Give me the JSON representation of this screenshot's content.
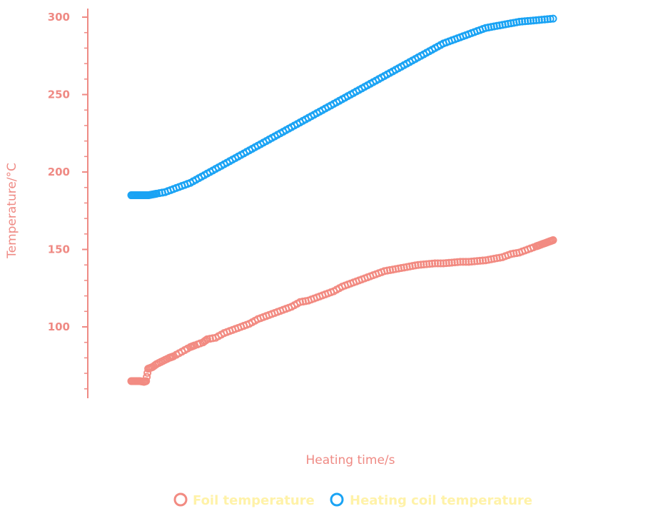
{
  "colors": {
    "axis": "#ef8a84",
    "foil": "#f28b82",
    "coil": "#1aa3f4",
    "legend_text": "#fff2a8"
  },
  "chart_data": {
    "type": "scatter",
    "title": "",
    "xlabel": "Heating time/s",
    "ylabel": "Temperature/°C",
    "ylim": [
      50,
      300
    ],
    "yticks": [
      100,
      150,
      200,
      250,
      300
    ],
    "ytick_labels": [
      "100",
      "150",
      "200",
      "250",
      "300"
    ],
    "x_tick_labels_shown": false,
    "grid": false,
    "legend_position": "bottom",
    "marker": "open-circle",
    "series": [
      {
        "name": "Foil temperature",
        "color": "#f28b82",
        "points": [
          [
            0.0,
            65
          ],
          [
            0.01,
            65
          ],
          [
            0.02,
            65
          ],
          [
            0.03,
            64.5
          ],
          [
            0.035,
            65
          ],
          [
            0.04,
            73
          ],
          [
            0.05,
            74
          ],
          [
            0.06,
            76
          ],
          [
            0.075,
            78
          ],
          [
            0.09,
            80
          ],
          [
            0.1,
            81
          ],
          [
            0.12,
            84
          ],
          [
            0.14,
            87
          ],
          [
            0.15,
            88
          ],
          [
            0.17,
            90
          ],
          [
            0.18,
            92
          ],
          [
            0.2,
            93
          ],
          [
            0.22,
            96
          ],
          [
            0.24,
            98
          ],
          [
            0.26,
            100
          ],
          [
            0.28,
            102
          ],
          [
            0.3,
            105
          ],
          [
            0.32,
            107
          ],
          [
            0.34,
            109
          ],
          [
            0.36,
            111
          ],
          [
            0.38,
            113
          ],
          [
            0.4,
            116
          ],
          [
            0.42,
            117
          ],
          [
            0.44,
            119
          ],
          [
            0.46,
            121
          ],
          [
            0.48,
            123
          ],
          [
            0.5,
            126
          ],
          [
            0.52,
            128
          ],
          [
            0.54,
            130
          ],
          [
            0.56,
            132
          ],
          [
            0.58,
            134
          ],
          [
            0.6,
            136
          ],
          [
            0.62,
            137
          ],
          [
            0.64,
            138
          ],
          [
            0.66,
            139
          ],
          [
            0.68,
            140
          ],
          [
            0.7,
            140.5
          ],
          [
            0.72,
            141
          ],
          [
            0.74,
            141
          ],
          [
            0.76,
            141.5
          ],
          [
            0.78,
            142
          ],
          [
            0.8,
            142
          ],
          [
            0.82,
            142.5
          ],
          [
            0.84,
            143
          ],
          [
            0.86,
            144
          ],
          [
            0.88,
            145
          ],
          [
            0.9,
            147
          ],
          [
            0.92,
            148
          ],
          [
            0.94,
            150
          ],
          [
            0.96,
            152
          ],
          [
            0.97,
            153
          ],
          [
            0.98,
            154
          ],
          [
            0.99,
            155
          ],
          [
            1.0,
            156
          ]
        ]
      },
      {
        "name": "Heating coil temperature",
        "color": "#1aa3f4",
        "points": [
          [
            0.0,
            185
          ],
          [
            0.01,
            185
          ],
          [
            0.02,
            185
          ],
          [
            0.03,
            185
          ],
          [
            0.04,
            185
          ],
          [
            0.05,
            185.5
          ],
          [
            0.06,
            186
          ],
          [
            0.08,
            187
          ],
          [
            0.1,
            189
          ],
          [
            0.12,
            191
          ],
          [
            0.14,
            193
          ],
          [
            0.16,
            196
          ],
          [
            0.18,
            199
          ],
          [
            0.2,
            202
          ],
          [
            0.22,
            205
          ],
          [
            0.24,
            208
          ],
          [
            0.26,
            211
          ],
          [
            0.28,
            214
          ],
          [
            0.3,
            217
          ],
          [
            0.32,
            220
          ],
          [
            0.34,
            223
          ],
          [
            0.36,
            226
          ],
          [
            0.38,
            229
          ],
          [
            0.4,
            232
          ],
          [
            0.42,
            235
          ],
          [
            0.44,
            238
          ],
          [
            0.46,
            241
          ],
          [
            0.48,
            244
          ],
          [
            0.5,
            247
          ],
          [
            0.52,
            250
          ],
          [
            0.54,
            253
          ],
          [
            0.56,
            256
          ],
          [
            0.58,
            259
          ],
          [
            0.6,
            262
          ],
          [
            0.62,
            265
          ],
          [
            0.64,
            268
          ],
          [
            0.66,
            271
          ],
          [
            0.68,
            274
          ],
          [
            0.7,
            277
          ],
          [
            0.72,
            280
          ],
          [
            0.74,
            283
          ],
          [
            0.76,
            285
          ],
          [
            0.78,
            287
          ],
          [
            0.8,
            289
          ],
          [
            0.82,
            291
          ],
          [
            0.84,
            293
          ],
          [
            0.86,
            294
          ],
          [
            0.88,
            295
          ],
          [
            0.9,
            296
          ],
          [
            0.92,
            297
          ],
          [
            0.94,
            297.5
          ],
          [
            0.96,
            298
          ],
          [
            0.98,
            298.5
          ],
          [
            1.0,
            299
          ]
        ]
      }
    ]
  }
}
